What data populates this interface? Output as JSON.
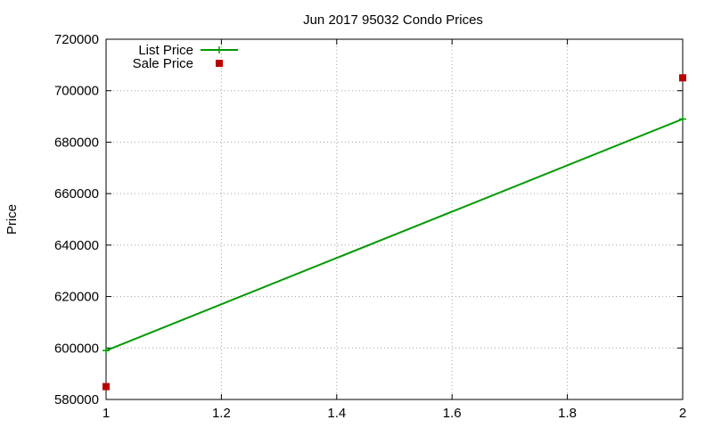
{
  "chart_data": {
    "type": "line",
    "title": "Jun 2017 95032 Condo Prices",
    "xlabel": "",
    "ylabel": "Price",
    "xlim": [
      1,
      2
    ],
    "ylim": [
      580000,
      720000
    ],
    "xticks": [
      1,
      1.2,
      1.4,
      1.6,
      1.8,
      2
    ],
    "xtick_labels": [
      "1",
      "1.2",
      "1.4",
      "1.6",
      "1.8",
      "2"
    ],
    "yticks": [
      580000,
      600000,
      620000,
      640000,
      660000,
      680000,
      700000,
      720000
    ],
    "ytick_labels": [
      "580000",
      "600000",
      "620000",
      "640000",
      "660000",
      "680000",
      "700000",
      "720000"
    ],
    "grid": true,
    "legend_position": "top-left",
    "series": [
      {
        "name": "List Price",
        "color": "#009900",
        "style": "line-plus",
        "x": [
          1,
          2
        ],
        "y": [
          599000,
          689000
        ]
      },
      {
        "name": "Sale Price",
        "color": "#bb0000",
        "style": "square",
        "x": [
          1,
          2
        ],
        "y": [
          585000,
          705000
        ]
      }
    ]
  }
}
